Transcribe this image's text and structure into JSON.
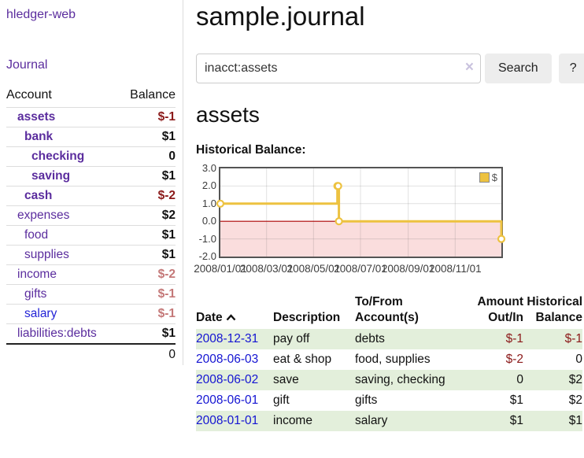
{
  "app": {
    "brand": "hledger-web"
  },
  "colors": {
    "accent_purple": "#5b2d9e",
    "link_blue": "#1414d2",
    "salary_link_blue": "#2323d6",
    "negative_red": "#8b1a1a",
    "muted_negative_red": "#c47878",
    "row_stripe_green": "#e3efdb",
    "chart_line_yellow": "#edc240",
    "chart_negative_region": "#fadddd",
    "chart_zero_line": "#aa0000",
    "chart_border": "#545454"
  },
  "sidebar": {
    "nav_journal": "Journal",
    "accounts_table": {
      "headers": [
        "Account",
        "Balance"
      ],
      "rows": [
        {
          "name": "assets",
          "indent": 1,
          "bold": true,
          "balance": "$-1",
          "negative": true
        },
        {
          "name": "bank",
          "indent": 2,
          "bold": true,
          "balance": "$1"
        },
        {
          "name": "checking",
          "indent": 3,
          "bold": true,
          "balance": "0"
        },
        {
          "name": "saving",
          "indent": 3,
          "bold": true,
          "balance": "$1"
        },
        {
          "name": "cash",
          "indent": 2,
          "bold": true,
          "balance": "$-2",
          "negative": true
        },
        {
          "name": "expenses",
          "indent": 1,
          "balance": "$2"
        },
        {
          "name": "food",
          "indent": 2,
          "balance": "$1"
        },
        {
          "name": "supplies",
          "indent": 2,
          "balance": "$1"
        },
        {
          "name": "income",
          "indent": 1,
          "balance": "$-2",
          "negative": true,
          "muted": true
        },
        {
          "name": "gifts",
          "indent": 2,
          "balance": "$-1",
          "negative": true,
          "muted": true
        },
        {
          "name": "salary",
          "indent": 2,
          "blue": true,
          "balance": "$-1",
          "negative": true,
          "muted": true
        },
        {
          "name": "liabilities:debts",
          "indent": 1,
          "balance": "$1"
        }
      ],
      "total": "0"
    }
  },
  "header": {
    "title": "sample.journal"
  },
  "search": {
    "value": "inacct:assets",
    "clear_icon": "×",
    "button_label": "Search",
    "help_label": "?"
  },
  "account_page": {
    "title": "assets",
    "chart_heading": "Historical Balance:"
  },
  "chart_data": {
    "type": "line",
    "step": true,
    "title": "Historical Balance:",
    "legend": "$",
    "legend_position": "top-right",
    "grid": true,
    "x_range": [
      "2008/01/01",
      "2008/12/31"
    ],
    "ylim": [
      -2,
      3
    ],
    "y_tick_labels": [
      "3.0",
      "2.0",
      "1.0",
      "0.0",
      "-1.0",
      "-2.0"
    ],
    "x_tick_labels": [
      "2008/01/01",
      "2008/03/01",
      "2008/05/01",
      "2008/07/01",
      "2008/09/01",
      "2008/11/01"
    ],
    "series": [
      {
        "name": "$",
        "color": "#edc240",
        "points": [
          {
            "date": "2008/01/01",
            "value": 1
          },
          {
            "date": "2008/06/01",
            "value": 2
          },
          {
            "date": "2008/06/02",
            "value": 2
          },
          {
            "date": "2008/06/03",
            "value": 0
          },
          {
            "date": "2008/12/31",
            "value": -1
          }
        ]
      }
    ]
  },
  "register": {
    "headers": [
      "Date",
      "Description",
      "To/From Account(s)",
      "Amount Out/In",
      "Historical Balance"
    ],
    "sort_icon": "chevron-up",
    "rows": [
      {
        "date": "2008-12-31",
        "description": "pay off",
        "accounts": "debts",
        "amount": "$-1",
        "balance": "$-1",
        "amount_negative": true,
        "balance_negative": true
      },
      {
        "date": "2008-06-03",
        "description": "eat & shop",
        "accounts": "food, supplies",
        "amount": "$-2",
        "balance": "0",
        "amount_negative": true
      },
      {
        "date": "2008-06-02",
        "description": "save",
        "accounts": "saving, checking",
        "amount": "0",
        "balance": "$2"
      },
      {
        "date": "2008-06-01",
        "description": "gift",
        "accounts": "gifts",
        "amount": "$1",
        "balance": "$2"
      },
      {
        "date": "2008-01-01",
        "description": "income",
        "accounts": "salary",
        "amount": "$1",
        "balance": "$1"
      }
    ]
  }
}
